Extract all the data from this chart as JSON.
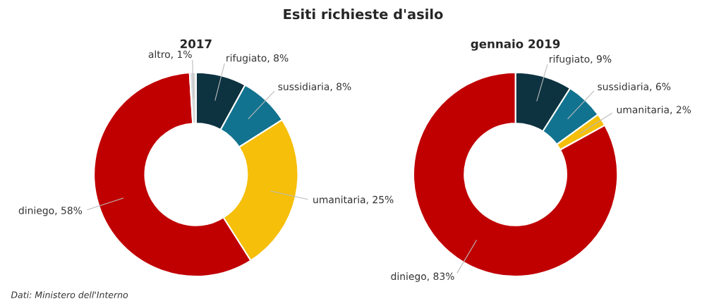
{
  "chart_data": [
    {
      "type": "donut",
      "title": "2017",
      "categories": [
        "rifugiato",
        "sussidiaria",
        "umanitaria",
        "diniego",
        "altro"
      ],
      "values": [
        8,
        8,
        25,
        58,
        1
      ],
      "value_labels": [
        "8%",
        "8%",
        "25%",
        "58%",
        "1%"
      ],
      "colors": [
        "#0d3340",
        "#11738f",
        "#f5bf0a",
        "#c00000",
        "#dcdcdc"
      ],
      "annotations": [
        "Esiti richieste d'asilo",
        "Dati: Ministero dell'Interno"
      ]
    },
    {
      "type": "donut",
      "title": "gennaio 2019",
      "categories": [
        "rifugiato",
        "sussidiaria",
        "umanitaria",
        "diniego"
      ],
      "values": [
        9,
        6,
        2,
        83
      ],
      "value_labels": [
        "9%",
        "6%",
        "2%",
        "83%"
      ],
      "colors": [
        "#0d3340",
        "#11738f",
        "#f5bf0a",
        "#c00000"
      ]
    }
  ]
}
